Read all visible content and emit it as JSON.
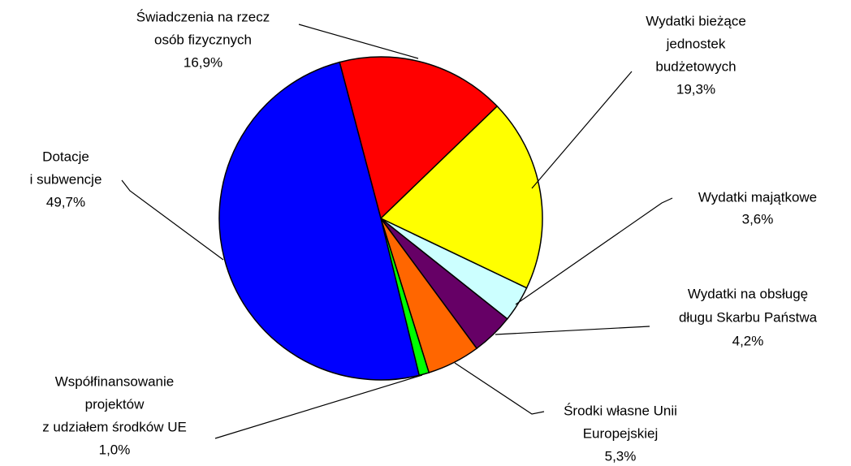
{
  "chart_data": {
    "type": "pie",
    "categories": [
      [
        "Świadczenia na rzecz",
        "osób fizycznych"
      ],
      [
        "Wydatki bieżące",
        "jednostek",
        "budżetowych"
      ],
      [
        "Wydatki majątkowe"
      ],
      [
        "Wydatki na obsługę",
        "długu Skarbu Państwa"
      ],
      [
        "Środki własne Unii",
        "Europejskiej"
      ],
      [
        "Współfinansowanie",
        "projektów",
        "z udziałem środków UE"
      ],
      [
        "Dotacje",
        "i subwencje"
      ]
    ],
    "values": [
      16.9,
      19.3,
      3.6,
      4.2,
      5.3,
      1.0,
      49.7
    ],
    "value_labels": [
      "16,9%",
      "19,3%",
      "3,6%",
      "4,2%",
      "5,3%",
      "1,0%",
      "49,7%"
    ],
    "colors": [
      "#ff0000",
      "#ffff00",
      "#ccffff",
      "#660066",
      "#ff6600",
      "#00ff00",
      "#0000ff"
    ]
  }
}
